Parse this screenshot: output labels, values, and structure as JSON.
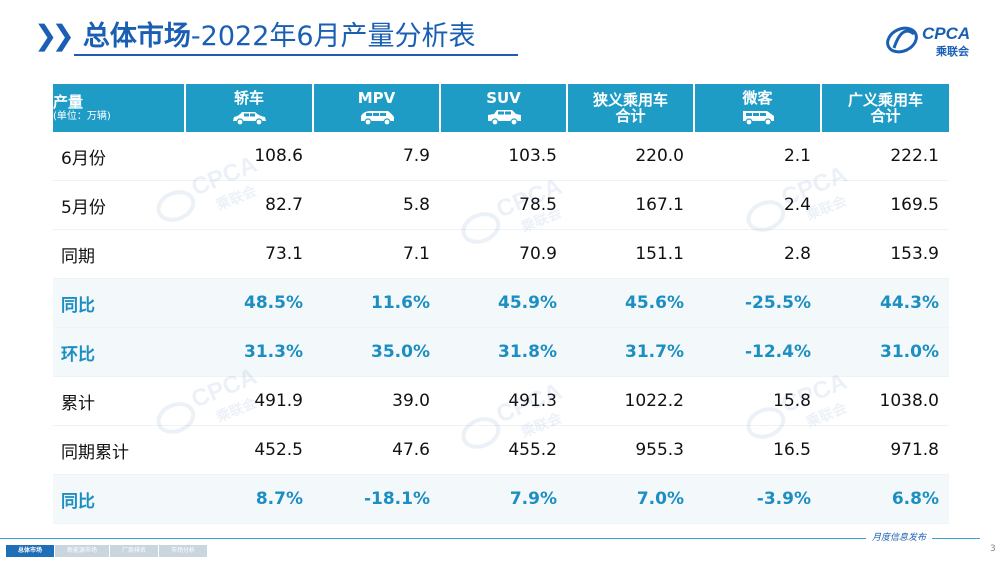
{
  "title": {
    "bold": "总体市场",
    "rest": "-2022年6月产量分析表"
  },
  "logo": {
    "name": "CPCA",
    "sub": "乘联会"
  },
  "watermark": {
    "name": "CPCA",
    "sub": "乘联会"
  },
  "table": {
    "header_first": {
      "label": "产量",
      "unit": "(单位：万辆)"
    },
    "columns": [
      {
        "line1": "轿车",
        "line2": "",
        "icon": "sedan-icon"
      },
      {
        "line1": "MPV",
        "line2": "",
        "icon": "mpv-icon"
      },
      {
        "line1": "SUV",
        "line2": "",
        "icon": "suv-icon"
      },
      {
        "line1": "狭义乘用车",
        "line2": "合计",
        "icon": ""
      },
      {
        "line1": "微客",
        "line2": "",
        "icon": "minivan-icon"
      },
      {
        "line1": "广义乘用车",
        "line2": "合计",
        "icon": ""
      }
    ],
    "rows": [
      {
        "label": "6月份",
        "values": [
          "108.6",
          "7.9",
          "103.5",
          "220.0",
          "2.1",
          "222.1"
        ]
      },
      {
        "label": "5月份",
        "values": [
          "82.7",
          "5.8",
          "78.5",
          "167.1",
          "2.4",
          "169.5"
        ]
      },
      {
        "label": "同期",
        "values": [
          "73.1",
          "7.1",
          "70.9",
          "151.1",
          "2.8",
          "153.9"
        ]
      },
      {
        "label": "同比",
        "values": [
          "48.5%",
          "11.6%",
          "45.9%",
          "45.6%",
          "-25.5%",
          "44.3%"
        ]
      },
      {
        "label": "环比",
        "values": [
          "31.3%",
          "35.0%",
          "31.8%",
          "31.7%",
          "-12.4%",
          "31.0%"
        ]
      },
      {
        "label": "累计",
        "values": [
          "491.9",
          "39.0",
          "491.3",
          "1022.2",
          "15.8",
          "1038.0"
        ]
      },
      {
        "label": "同期累计",
        "values": [
          "452.5",
          "47.6",
          "455.2",
          "955.3",
          "16.5",
          "971.8"
        ]
      },
      {
        "label": "同比",
        "values": [
          "8.7%",
          "-18.1%",
          "7.9%",
          "7.0%",
          "-3.9%",
          "6.8%"
        ]
      }
    ]
  },
  "footer": {
    "tabs": [
      "总体市场",
      "新能源市场",
      "厂商排名",
      "市场分析"
    ],
    "monthly_label": "月度信息发布",
    "page_number": "3"
  },
  "colors": {
    "accent": "#1a5fb4",
    "header": "#1f9cc6",
    "percent": "#1c8ec2"
  }
}
